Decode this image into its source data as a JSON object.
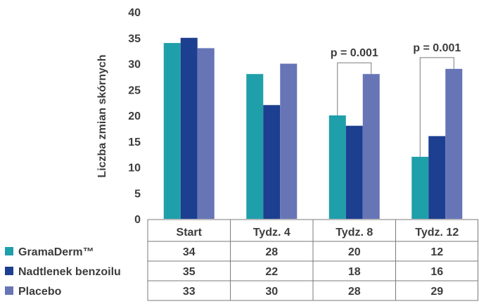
{
  "chart_data": {
    "type": "bar",
    "ylabel": "Liczba zmian skórnych",
    "ylim": [
      0,
      40
    ],
    "yticks": [
      0,
      5,
      10,
      15,
      20,
      25,
      30,
      35,
      40
    ],
    "categories": [
      "Start",
      "Tydz. 4",
      "Tydz. 8",
      "Tydz. 12"
    ],
    "series": [
      {
        "name": "GramaDerm™",
        "values": [
          34,
          28,
          20,
          12
        ],
        "color": "#1f9faa"
      },
      {
        "name": "Nadtlenek benzoilu",
        "values": [
          35,
          22,
          18,
          16
        ],
        "color": "#1c3f8f"
      },
      {
        "name": "Placebo",
        "values": [
          33,
          30,
          28,
          29
        ],
        "color": "#6775b7"
      }
    ],
    "annotations": [
      {
        "text": "p = 0.001",
        "category": "Tydz. 8",
        "from_series": "GramaDerm™",
        "to_series": "Placebo"
      },
      {
        "text": "p = 0.001",
        "category": "Tydz. 12",
        "from_series": "GramaDerm™",
        "to_series": "Placebo"
      }
    ],
    "table": true,
    "legend_placement": "left of data table",
    "grid": false
  }
}
